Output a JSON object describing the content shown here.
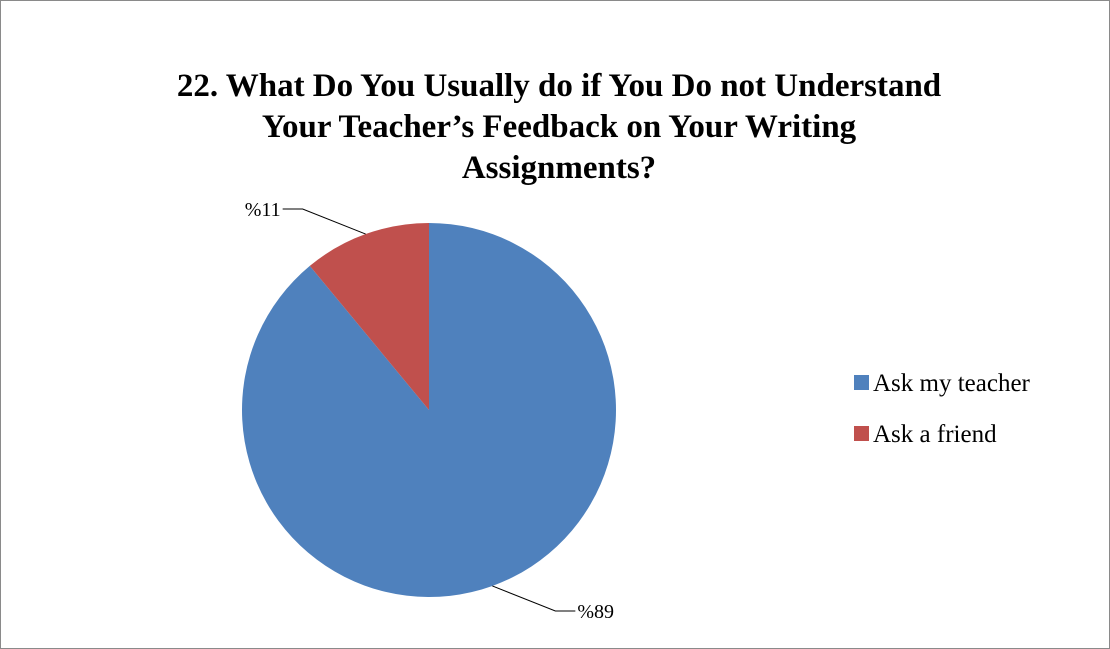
{
  "chart_data": {
    "type": "pie",
    "title": "22. What Do You Usually do if You Do not Understand Your Teacher’s Feedback on Your Writing Assignments?",
    "title_lines": [
      "22. What Do You Usually do if You Do not Understand",
      "Your Teacher’s Feedback on Your Writing",
      "Assignments?"
    ],
    "slices": [
      {
        "name": "Ask my teacher",
        "value": 89,
        "label": "%89",
        "color": "#4F81BD"
      },
      {
        "name": "Ask a friend",
        "value": 11,
        "label": "%11",
        "color": "#C0504D"
      }
    ],
    "legend_position": "right"
  }
}
